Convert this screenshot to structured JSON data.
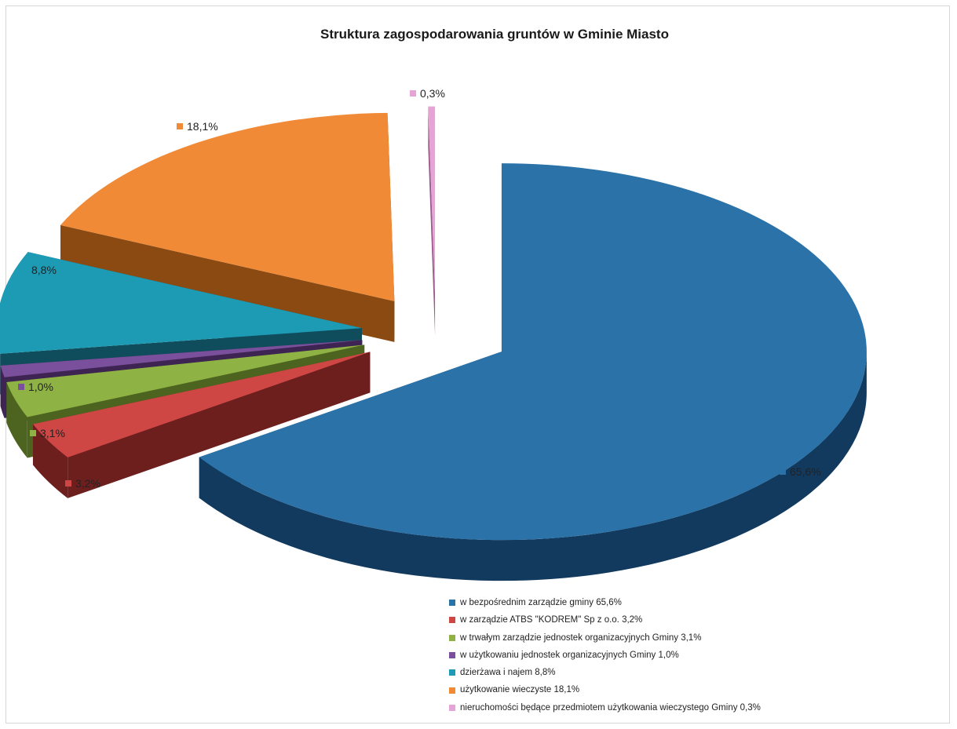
{
  "chart_data": {
    "type": "pie",
    "title": "Struktura zagospodarowania gruntów w Gminie Miasto",
    "legend_position": "bottom-right",
    "slices": [
      {
        "label": "w bezpośrednim zarządzie gminy 65,6%",
        "value": 65.6,
        "data_label": "65,6%",
        "color": "#2a72a8",
        "side_color": "#123a5e"
      },
      {
        "label": "w zarządzie ATBS \"KODREM\" Sp z o.o. 3,2%",
        "value": 3.2,
        "data_label": "3,2%",
        "color": "#cf4745",
        "side_color": "#6d1f1e"
      },
      {
        "label": "w trwałym zarządzie jednostek organizacyjnych Gminy 3,1%",
        "value": 3.1,
        "data_label": "3,1%",
        "color": "#8eb344",
        "side_color": "#4c6420"
      },
      {
        "label": "w użytkowaniu jednostek organizacyjnych Gminy 1,0%",
        "value": 1.0,
        "data_label": "1,0%",
        "color": "#7a4f9b",
        "side_color": "#3e2452"
      },
      {
        "label": "dzierżawa i najem 8,8%",
        "value": 8.8,
        "data_label": "8,8%",
        "color": "#1e9bb4",
        "side_color": "#0f4d5c"
      },
      {
        "label": "użytkowanie wieczyste 18,1%",
        "value": 18.1,
        "data_label": "18,1%",
        "color": "#f08a36",
        "side_color": "#8a4a12"
      },
      {
        "label": "nieruchomości będące przedmiotem użytkowania wieczystego Gminy 0,3%",
        "value": 0.3,
        "data_label": "0,3%",
        "color": "#e6a4d6",
        "side_color": "#9a5a8c"
      }
    ]
  }
}
